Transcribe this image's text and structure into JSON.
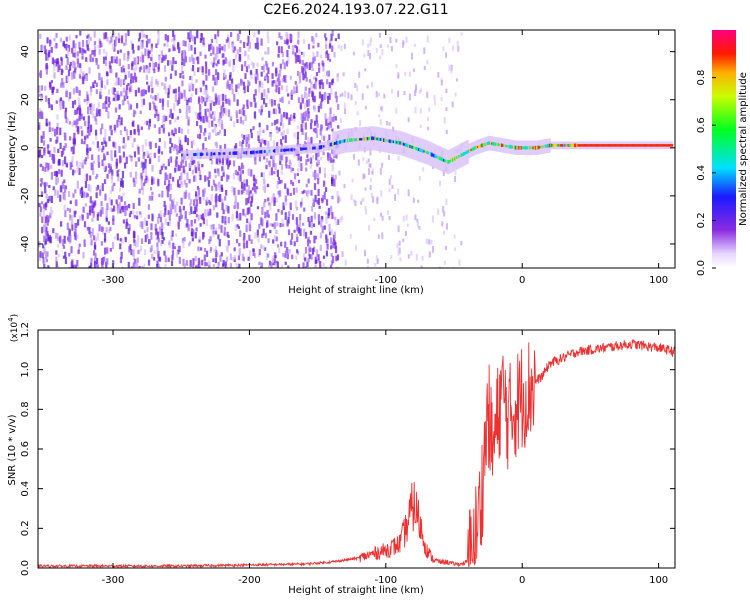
{
  "page_title": "C2E6.2024.193.07.22.G11",
  "chart_data": [
    {
      "type": "heatmap",
      "xlabel": "Height of straight line (km)",
      "ylabel": "Frequency (Hz)",
      "xlim": [
        -355,
        112
      ],
      "ylim": [
        -50,
        49
      ],
      "x_ticks": [
        -300,
        -200,
        -100,
        0,
        100
      ],
      "y_ticks": [
        -40,
        -20,
        0,
        20,
        40
      ],
      "colorbar": {
        "label": "Normalized spectral amplitude",
        "range": [
          0,
          1
        ],
        "ticks": [
          0.0,
          0.2,
          0.4,
          0.6,
          0.8
        ]
      },
      "frequency_track": {
        "x": [
          -355,
          -250,
          -200,
          -150,
          -130,
          -110,
          -90,
          -70,
          -55,
          -45,
          -35,
          -25,
          -15,
          -5,
          0,
          10,
          20,
          40,
          60,
          80,
          100,
          112
        ],
        "y": [
          0,
          -3,
          -2,
          0,
          3,
          4,
          2,
          -2,
          -6,
          -3,
          0,
          2,
          1,
          0,
          0,
          0,
          1,
          1,
          1,
          1,
          1,
          1
        ]
      }
    },
    {
      "type": "line",
      "xlabel": "Height of straight line (km)",
      "ylabel": "SNR (10 * v/v)",
      "y_multiplier": "(x10",
      "y_exponent": "4",
      "xlim": [
        -355,
        112
      ],
      "ylim": [
        0,
        1.2
      ],
      "x_ticks": [
        -300,
        -200,
        -100,
        0,
        100
      ],
      "y_ticks": [
        0.0,
        0.2,
        0.4,
        0.6,
        0.8,
        1.0,
        1.2
      ],
      "series": [
        {
          "color": "#f03030",
          "x": [
            -355,
            -300,
            -250,
            -200,
            -160,
            -140,
            -120,
            -110,
            -100,
            -90,
            -85,
            -80,
            -78,
            -75,
            -70,
            -65,
            -60,
            -55,
            -50,
            -45,
            -40,
            -35,
            -30,
            -28,
            -25,
            -22,
            -20,
            -15,
            -10,
            -5,
            0,
            5,
            10,
            15,
            20,
            30,
            40,
            50,
            60,
            70,
            80,
            90,
            100,
            112
          ],
          "y": [
            0.01,
            0.01,
            0.01,
            0.015,
            0.02,
            0.03,
            0.05,
            0.07,
            0.09,
            0.12,
            0.2,
            0.32,
            0.3,
            0.22,
            0.09,
            0.04,
            0.03,
            0.03,
            0.02,
            0.02,
            0.03,
            0.12,
            0.35,
            0.55,
            0.8,
            0.6,
            0.65,
            0.9,
            0.75,
            0.82,
            0.87,
            0.9,
            0.94,
            0.97,
            1.03,
            1.06,
            1.09,
            1.1,
            1.11,
            1.12,
            1.13,
            1.12,
            1.11,
            1.09
          ]
        }
      ]
    }
  ]
}
